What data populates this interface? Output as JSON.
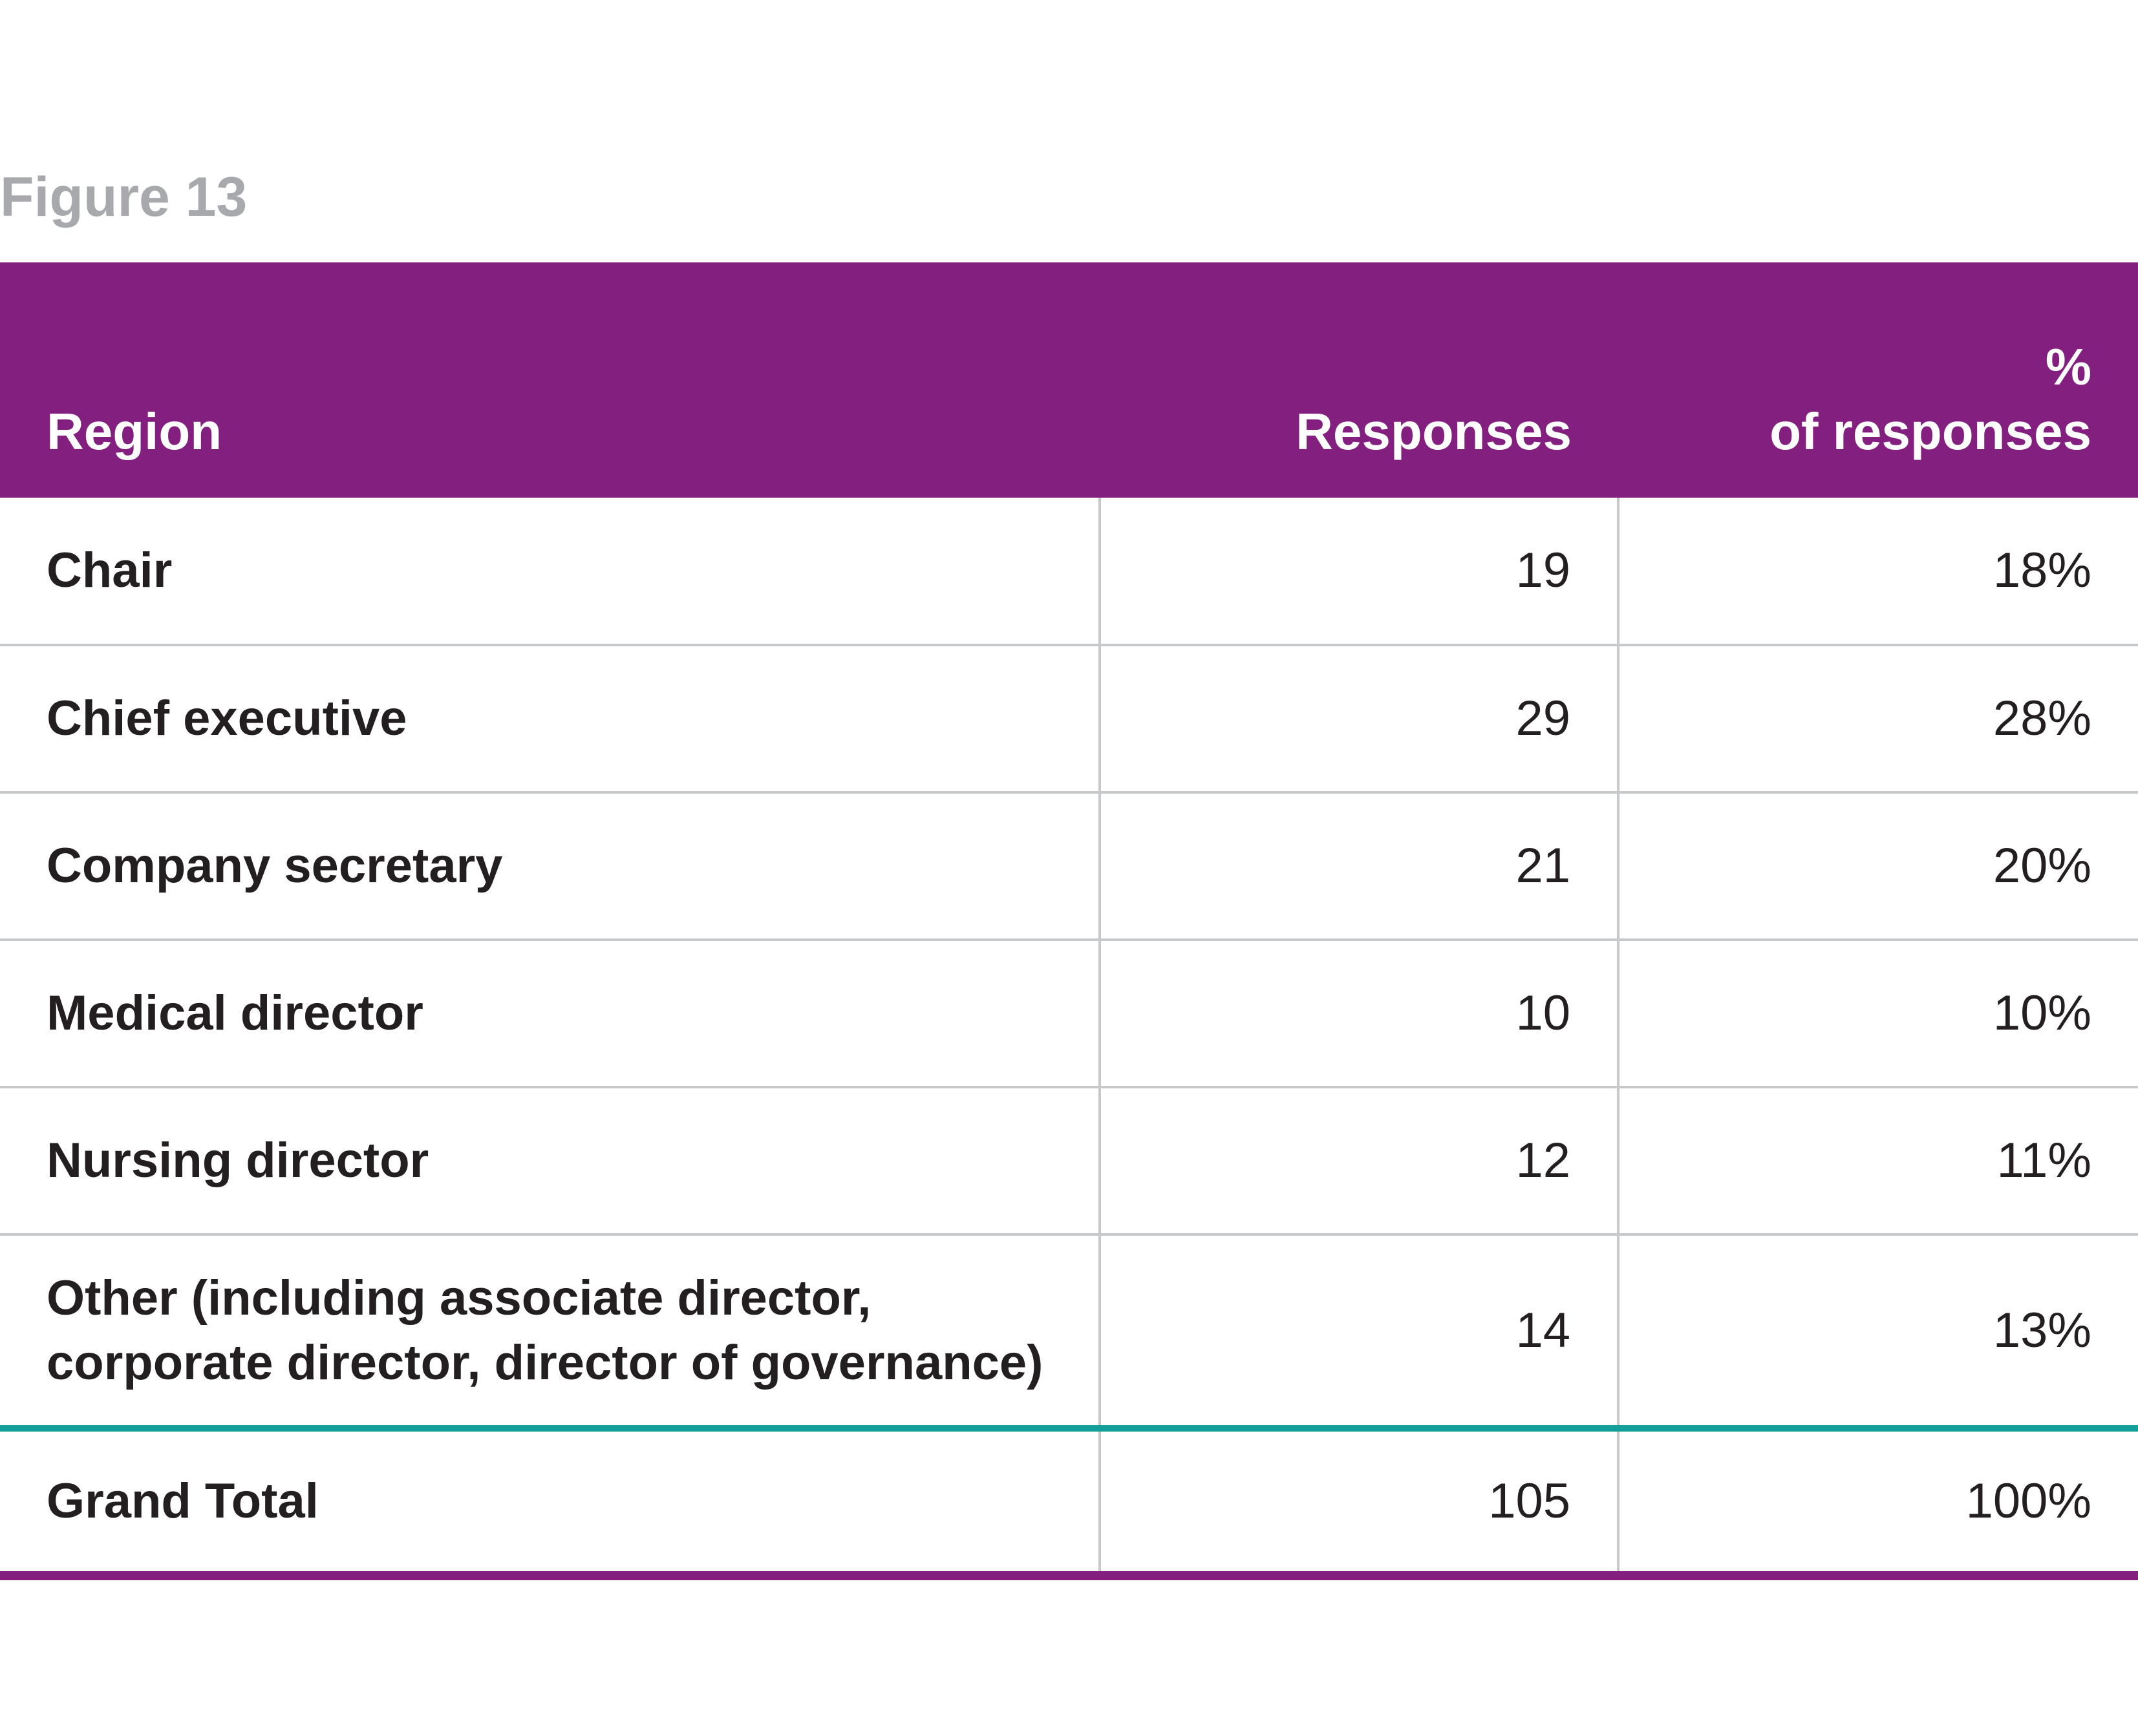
{
  "figure_label": "Figure 13",
  "chart_data": {
    "type": "table",
    "columns": [
      "Region",
      "Responses",
      "% of responses"
    ],
    "header": {
      "region": "Region",
      "responses": "Responses",
      "percent_line1": "%",
      "percent_line2": "of responses"
    },
    "rows": [
      {
        "label": "Chair",
        "responses": "19",
        "percent": "18%"
      },
      {
        "label": "Chief executive",
        "responses": "29",
        "percent": "28%"
      },
      {
        "label": "Company secretary",
        "responses": "21",
        "percent": "20%"
      },
      {
        "label": "Medical director",
        "responses": "10",
        "percent": "10%"
      },
      {
        "label": "Nursing director",
        "responses": "12",
        "percent": "11%"
      },
      {
        "label_line1": "Other (including associate director,",
        "label_line2": "corporate director, director of governance)",
        "responses": "14",
        "percent": "13%"
      }
    ],
    "total": {
      "label": "Grand Total",
      "responses": "105",
      "percent": "100%"
    }
  },
  "colors": {
    "header_bg": "#821f7f",
    "header_text": "#ffffff",
    "title": "#a7a9ac",
    "grid": "#c7c8ca",
    "total_separator": "#14a09a",
    "bottom_rule": "#821f7f"
  }
}
